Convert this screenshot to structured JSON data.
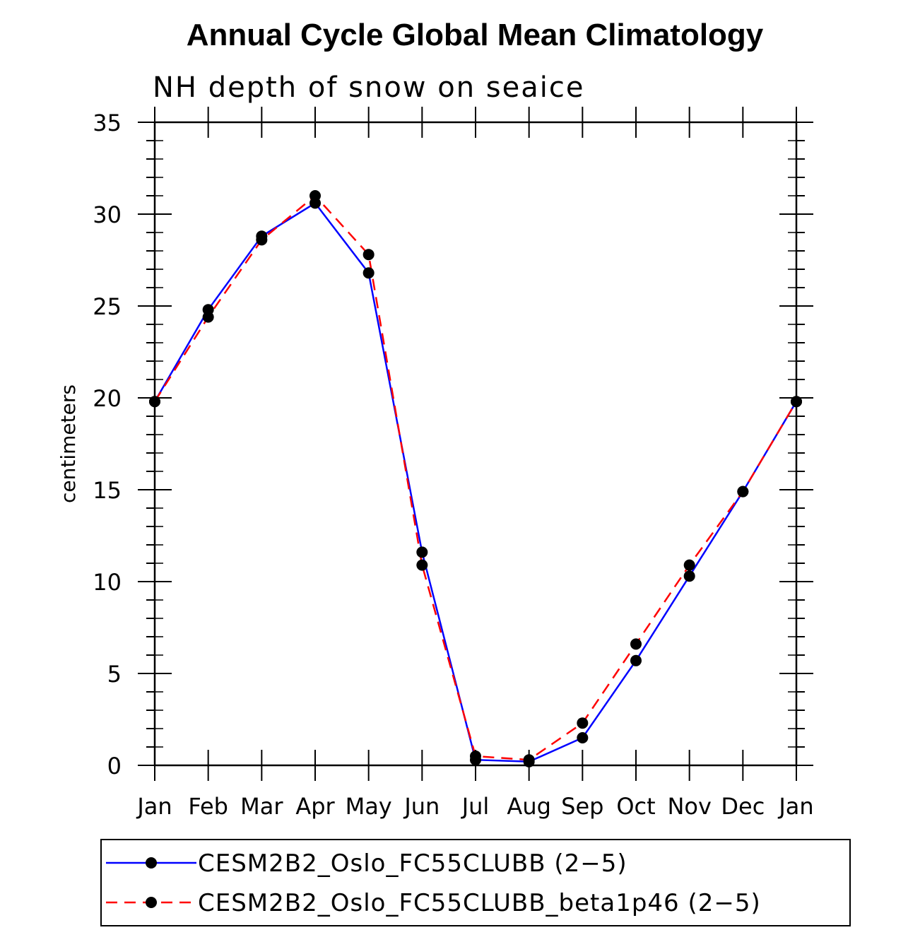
{
  "chart_data": {
    "type": "line",
    "title": "Annual Cycle Global Mean Climatology",
    "subtitle": "NH depth of snow on seaice",
    "xlabel": "",
    "ylabel": "centimeters",
    "ylim": [
      0,
      35
    ],
    "yticks": [
      0,
      5,
      10,
      15,
      20,
      25,
      30,
      35
    ],
    "categories": [
      "Jan",
      "Feb",
      "Mar",
      "Apr",
      "May",
      "Jun",
      "Jul",
      "Aug",
      "Sep",
      "Oct",
      "Nov",
      "Dec",
      "Jan"
    ],
    "series": [
      {
        "name": "CESM2B2_Oslo_FC55CLUBB (2−5)",
        "color": "#0000ff",
        "dash": "solid",
        "values": [
          19.8,
          24.8,
          28.8,
          30.6,
          26.8,
          11.6,
          0.3,
          0.2,
          1.5,
          5.7,
          10.3,
          14.9,
          19.8
        ]
      },
      {
        "name": "CESM2B2_Oslo_FC55CLUBB_beta1p46 (2−5)",
        "color": "#ff0000",
        "dash": "dashed",
        "values": [
          19.8,
          24.4,
          28.6,
          31.0,
          27.8,
          10.9,
          0.5,
          0.3,
          2.3,
          6.6,
          10.9,
          14.9,
          19.8
        ]
      }
    ],
    "marker_color": "#000000",
    "legend_position": "bottom"
  }
}
